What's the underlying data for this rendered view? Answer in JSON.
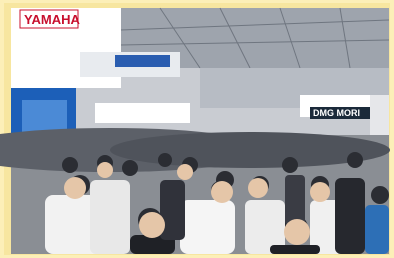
{
  "image": {
    "signs": [
      "YAMAHA",
      "DMG MORI"
    ]
  }
}
